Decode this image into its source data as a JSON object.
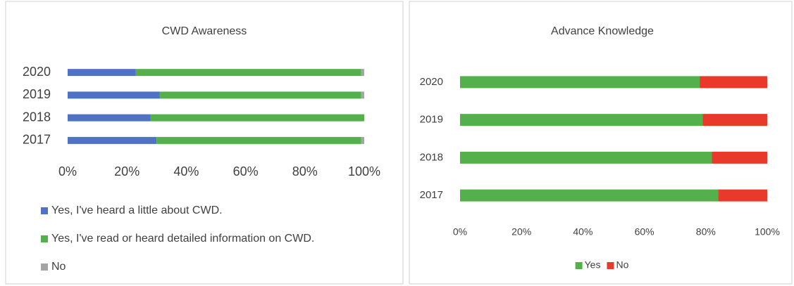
{
  "chart_data": [
    {
      "type": "bar",
      "orientation": "horizontal",
      "stacked": true,
      "title": "CWD Awareness",
      "categories": [
        "2020",
        "2019",
        "2018",
        "2017"
      ],
      "series": [
        {
          "name": "Yes, I've heard a little about CWD.",
          "color": "#4f72c4",
          "values": [
            23,
            31,
            28,
            30
          ]
        },
        {
          "name": "Yes, I've read or heard detailed information on CWD.",
          "color": "#54b04a",
          "values": [
            76,
            68,
            72,
            69
          ]
        },
        {
          "name": "No",
          "color": "#a5a5a5",
          "values": [
            1,
            1,
            0,
            1
          ]
        }
      ],
      "xlim": [
        0,
        100
      ],
      "xticks": [
        {
          "value": 0,
          "label": "0%"
        },
        {
          "value": 20,
          "label": "20%"
        },
        {
          "value": 40,
          "label": "40%"
        },
        {
          "value": 60,
          "label": "60%"
        },
        {
          "value": 80,
          "label": "80%"
        },
        {
          "value": 100,
          "label": "100%"
        }
      ],
      "legend": "bottom",
      "legend_layout": "vertical"
    },
    {
      "type": "bar",
      "orientation": "horizontal",
      "stacked": true,
      "title": "Advance Knowledge",
      "categories": [
        "2020",
        "2019",
        "2018",
        "2017"
      ],
      "series": [
        {
          "name": "Yes",
          "color": "#54b04a",
          "values": [
            78,
            79,
            82,
            84
          ]
        },
        {
          "name": "No",
          "color": "#e8392b",
          "values": [
            22,
            21,
            18,
            16
          ]
        }
      ],
      "xlim": [
        0,
        100
      ],
      "xticks": [
        {
          "value": 0,
          "label": "0%"
        },
        {
          "value": 20,
          "label": "20%"
        },
        {
          "value": 40,
          "label": "40%"
        },
        {
          "value": 60,
          "label": "60%"
        },
        {
          "value": 80,
          "label": "80%"
        },
        {
          "value": 100,
          "label": "100%"
        }
      ],
      "legend": "bottom",
      "legend_layout": "horizontal"
    }
  ]
}
